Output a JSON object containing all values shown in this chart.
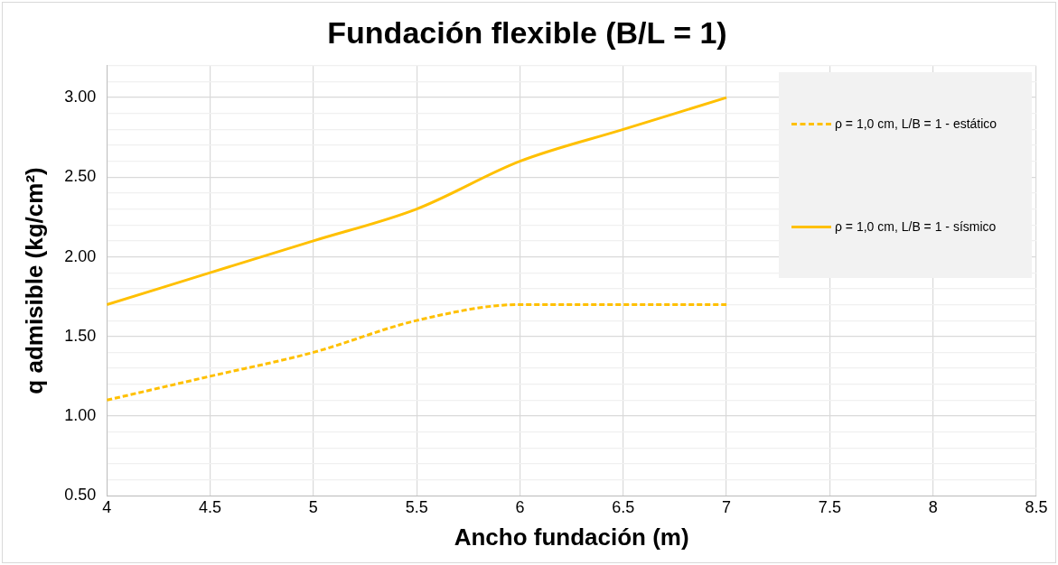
{
  "chart_data": {
    "type": "line",
    "title": "Fundación flexible (B/L = 1)",
    "xlabel": "Ancho fundación (m)",
    "ylabel": "q admisible (kg/cm²)",
    "x": [
      4,
      4.5,
      5,
      5.5,
      6,
      6.5,
      7
    ],
    "series": [
      {
        "name": "ρ = 1,0 cm, L/B = 1 - estático",
        "color": "#ffc000",
        "line_style": "dashed",
        "values": [
          1.1,
          1.25,
          1.4,
          1.6,
          1.7,
          1.7,
          1.7
        ]
      },
      {
        "name": "ρ = 1,0 cm, L/B = 1 - sísmico",
        "color": "#ffc000",
        "line_style": "solid",
        "values": [
          1.7,
          1.9,
          2.1,
          2.3,
          2.6,
          2.8,
          3.0
        ]
      }
    ],
    "xlim": [
      4,
      8.5
    ],
    "xticks": [
      4,
      4.5,
      5,
      5.5,
      6,
      6.5,
      7,
      7.5,
      8,
      8.5
    ],
    "ylim": [
      0.5,
      3.2
    ],
    "yticks": [
      {
        "value": 0.5,
        "label": "0.50"
      },
      {
        "value": 0.6,
        "label": null
      },
      {
        "value": 0.7,
        "label": null
      },
      {
        "value": 0.8,
        "label": null
      },
      {
        "value": 0.9,
        "label": null
      },
      {
        "value": 1.0,
        "label": "1.00"
      },
      {
        "value": 1.1,
        "label": null
      },
      {
        "value": 1.2,
        "label": null
      },
      {
        "value": 1.3,
        "label": null
      },
      {
        "value": 1.4,
        "label": null
      },
      {
        "value": 1.5,
        "label": "1.50"
      },
      {
        "value": 1.6,
        "label": null
      },
      {
        "value": 1.7,
        "label": null
      },
      {
        "value": 1.8,
        "label": null
      },
      {
        "value": 1.9,
        "label": null
      },
      {
        "value": 2.0,
        "label": "2.00"
      },
      {
        "value": 2.1,
        "label": null
      },
      {
        "value": 2.2,
        "label": null
      },
      {
        "value": 2.3,
        "label": null
      },
      {
        "value": 2.4,
        "label": null
      },
      {
        "value": 2.5,
        "label": "2.50"
      },
      {
        "value": 2.6,
        "label": null
      },
      {
        "value": 2.7,
        "label": null
      },
      {
        "value": 2.8,
        "label": null
      },
      {
        "value": 2.9,
        "label": null
      },
      {
        "value": 3.0,
        "label": "3.00"
      },
      {
        "value": 3.1,
        "label": null
      },
      {
        "value": 3.2,
        "label": null
      }
    ],
    "grid": true,
    "legend": "top right",
    "marker": "none"
  }
}
